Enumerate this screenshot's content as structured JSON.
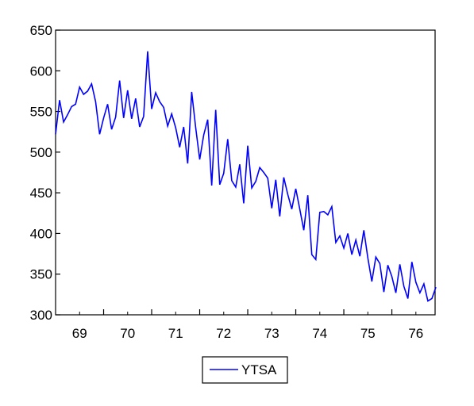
{
  "chart_data": {
    "type": "line",
    "ylim": [
      300,
      650
    ],
    "xlim": [
      68.5,
      76.4
    ],
    "yticks": [
      "300",
      "350",
      "400",
      "450",
      "500",
      "550",
      "600",
      "650"
    ],
    "xticks": [
      "69",
      "70",
      "71",
      "72",
      "73",
      "74",
      "75",
      "76"
    ],
    "grid": false,
    "legend_position": "bottom-center",
    "series": [
      {
        "name": "YTSA",
        "color": "#0000ff",
        "x_start": 68.5,
        "x_step": 0.0833333,
        "values": [
          522,
          564,
          537,
          546,
          556,
          559,
          580,
          571,
          575,
          584,
          562,
          522,
          542,
          559,
          528,
          543,
          588,
          542,
          576,
          541,
          566,
          531,
          544,
          624,
          553,
          573,
          562,
          555,
          532,
          547,
          530,
          506,
          531,
          486,
          574,
          530,
          491,
          521,
          540,
          459,
          552,
          460,
          474,
          516,
          465,
          457,
          485,
          437,
          508,
          456,
          464,
          481,
          475,
          468,
          431,
          466,
          421,
          469,
          448,
          430,
          455,
          430,
          404,
          447,
          374,
          368,
          426,
          427,
          423,
          433,
          389,
          397,
          382,
          400,
          374,
          392,
          372,
          404,
          370,
          341,
          371,
          363,
          328,
          361,
          347,
          327,
          362,
          335,
          320,
          365,
          340,
          327,
          338,
          317,
          320,
          334
        ]
      }
    ]
  }
}
